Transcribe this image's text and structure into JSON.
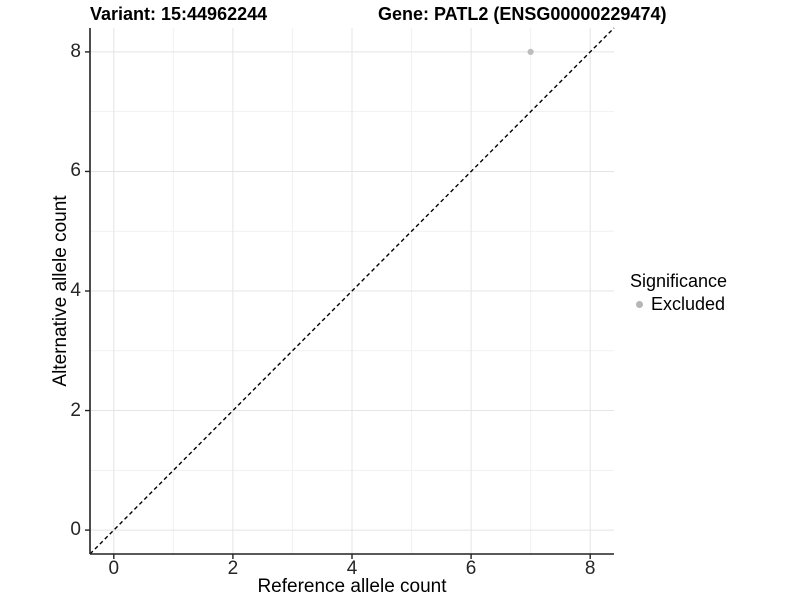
{
  "titles": {
    "variant": "Variant: 15:44962244",
    "gene": "Gene: PATL2 (ENSG00000229474)"
  },
  "axes": {
    "x_label": "Reference allele count",
    "y_label": "Alternative allele count",
    "x_tick_labels": [
      "0",
      "2",
      "4",
      "6",
      "8"
    ],
    "y_tick_labels": [
      "0",
      "2",
      "4",
      "6",
      "8"
    ]
  },
  "legend": {
    "title": "Significance",
    "items": [
      {
        "label": "Excluded",
        "color": "#b5b5b5",
        "marker": "circle-icon"
      }
    ],
    "position": "right"
  },
  "colors": {
    "background": "#ffffff",
    "grid_major": "#e4e4e4",
    "grid_minor": "#f1f1f1",
    "axis_line": "#222222",
    "tick_mark": "#222222",
    "dashed_line": "#000000",
    "point": "#bdbdbd"
  },
  "chart_data": {
    "type": "scatter",
    "title": "Variant: 15:44962244   Gene: PATL2 (ENSG00000229474)",
    "xlabel": "Reference allele count",
    "ylabel": "Alternative allele count",
    "xlim": [
      -0.4,
      8.4
    ],
    "ylim": [
      -0.4,
      8.4
    ],
    "x_major_ticks": [
      0,
      2,
      4,
      6,
      8
    ],
    "x_minor_ticks": [
      1,
      3,
      5,
      7
    ],
    "y_major_ticks": [
      0,
      2,
      4,
      6,
      8
    ],
    "y_minor_ticks": [
      1,
      3,
      5,
      7
    ],
    "grid": true,
    "legend_position": "right",
    "series": [
      {
        "name": "Excluded",
        "color": "#bdbdbd",
        "points": [
          {
            "x": 7,
            "y": 8
          }
        ]
      }
    ],
    "reference_line": {
      "kind": "identity",
      "style": "dashed",
      "color": "#000000",
      "from": [
        -0.4,
        -0.4
      ],
      "to": [
        8.4,
        8.4
      ]
    }
  }
}
